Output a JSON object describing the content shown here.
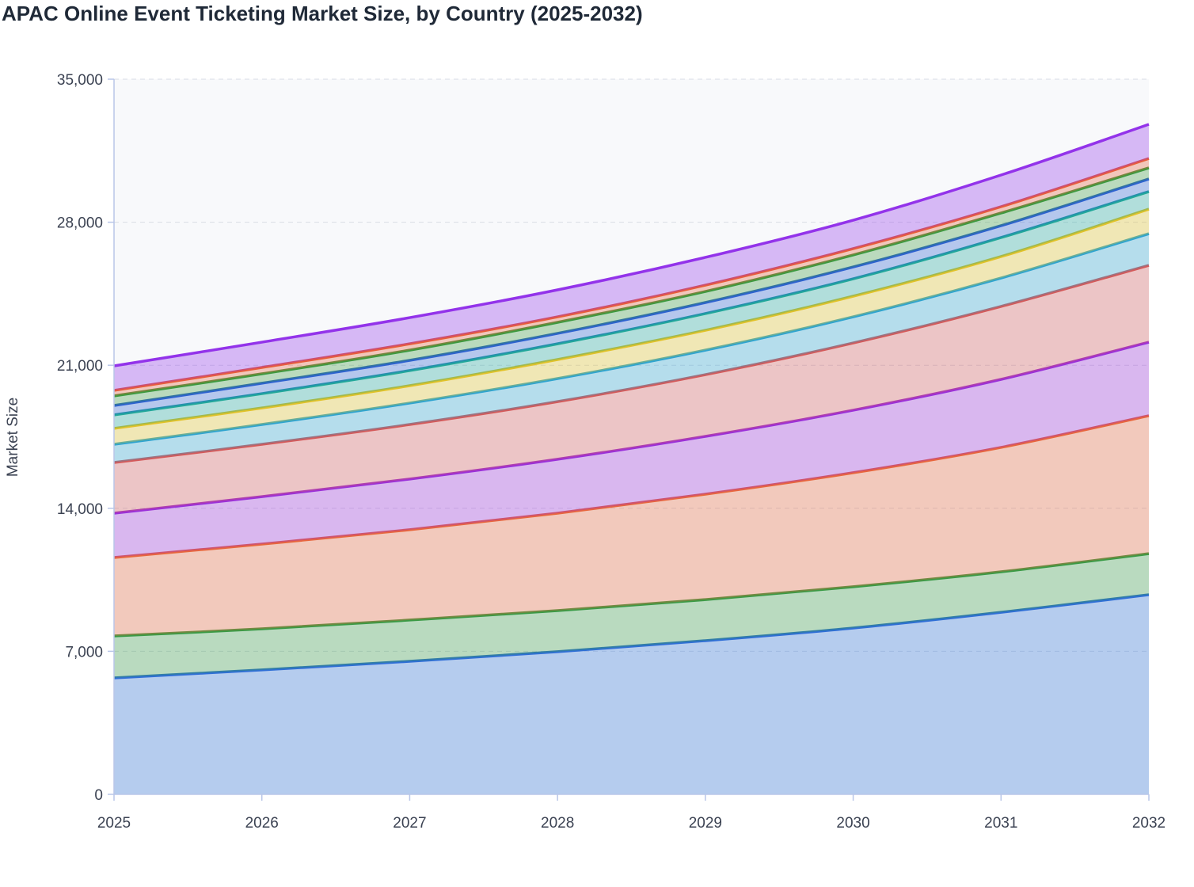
{
  "chart_data": {
    "type": "stacked_area",
    "title": "APAC Online Event Ticketing Market Size, by Country (2025-2032)",
    "y_label": "Market Size",
    "x": [
      2025,
      2026,
      2027,
      2028,
      2029,
      2030,
      2031,
      2032
    ],
    "xlim": [
      2025,
      2032
    ],
    "xticks": [
      2025,
      2026,
      2027,
      2028,
      2029,
      2030,
      2031,
      2032
    ],
    "ylim": [
      0,
      35000
    ],
    "yticks": [
      0,
      {
        "value": 7000,
        "label": "7,000"
      },
      {
        "value": 14000,
        "label": "14,000"
      },
      {
        "value": 21000,
        "label": "21,000"
      },
      {
        "value": 28000,
        "label": "28,000"
      },
      {
        "value": 35000,
        "label": "35,000"
      }
    ],
    "grid": true,
    "series": [
      {
        "color": "#2f6fd6",
        "values": [
          5700,
          6090,
          6510,
          6980,
          7520,
          8140,
          8910,
          9770
        ]
      },
      {
        "color": "#3a9a45",
        "values": [
          2050,
          2010,
          2020,
          2010,
          2010,
          2020,
          1980,
          2010
        ]
      },
      {
        "color": "#e8663d",
        "values": [
          3840,
          4150,
          4420,
          4770,
          5160,
          5580,
          6090,
          6750
        ]
      },
      {
        "color": "#9b30d9",
        "values": [
          2170,
          2320,
          2480,
          2640,
          2830,
          3060,
          3330,
          3600
        ]
      },
      {
        "color": "#d45a5a",
        "values": [
          2480,
          2560,
          2670,
          2820,
          3020,
          3290,
          3570,
          3760
        ]
      },
      {
        "color": "#2fa4cf",
        "values": [
          890,
          970,
          1050,
          1130,
          1200,
          1280,
          1390,
          1550
        ]
      },
      {
        "color": "#e1c228",
        "values": [
          780,
          810,
          850,
          930,
          970,
          1010,
          1050,
          1200
        ]
      },
      {
        "color": "#22a89a",
        "values": [
          660,
          700,
          740,
          770,
          820,
          850,
          930,
          860
        ]
      },
      {
        "color": "#2d62d0",
        "values": [
          460,
          510,
          500,
          510,
          540,
          580,
          580,
          620
        ]
      },
      {
        "color": "#3c9a3f",
        "values": [
          470,
          460,
          500,
          540,
          540,
          590,
          620,
          540
        ]
      },
      {
        "color": "#e85d3a",
        "values": [
          270,
          310,
          310,
          270,
          310,
          310,
          310,
          460
        ]
      },
      {
        "color": "#9333ea",
        "values": [
          1200,
          1240,
          1280,
          1320,
          1360,
          1390,
          1550,
          1670
        ]
      }
    ]
  }
}
